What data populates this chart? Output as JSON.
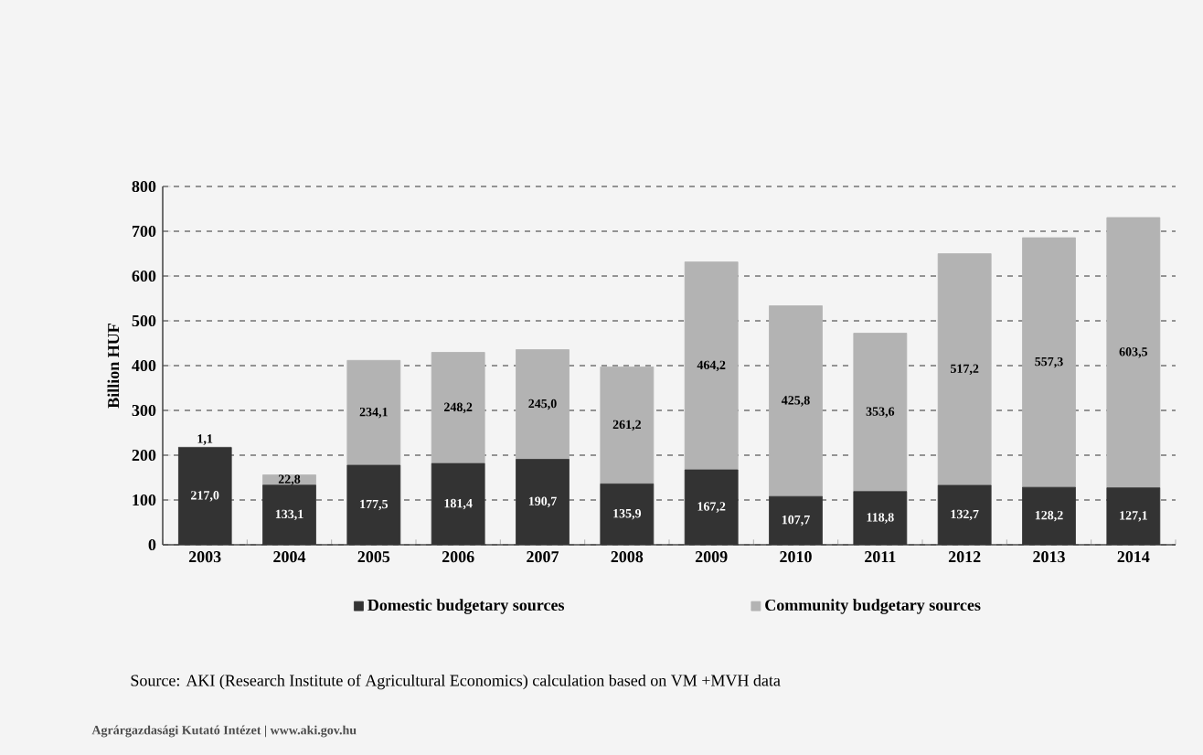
{
  "chart_data": {
    "type": "bar",
    "stacked": true,
    "ylabel": "Billion HUF",
    "categories": [
      "2003",
      "2004",
      "2005",
      "2006",
      "2007",
      "2008",
      "2009",
      "2010",
      "2011",
      "2012",
      "2013",
      "2014"
    ],
    "series": [
      {
        "name": "Domestic budgetary sources",
        "color": "#333333",
        "values": [
          217.0,
          133.1,
          177.5,
          181.4,
          190.7,
          135.9,
          167.2,
          107.7,
          118.8,
          132.7,
          128.2,
          127.1
        ],
        "value_labels": [
          "217,0",
          "133,1",
          "177,5",
          "181,4",
          "190,7",
          "135,9",
          "167,2",
          "107,7",
          "118,8",
          "132,7",
          "128,2",
          "127,1"
        ]
      },
      {
        "name": "Community budgetary sources",
        "color": "#b3b3b3",
        "values": [
          1.1,
          22.8,
          234.1,
          248.2,
          245.0,
          261.2,
          464.2,
          425.8,
          353.6,
          517.2,
          557.3,
          603.5
        ],
        "value_labels": [
          "1,1",
          "22,8",
          "234,1",
          "248,2",
          "245,0",
          "261,2",
          "464,2",
          "425,8",
          "353,6",
          "517,2",
          "557,3",
          "603,5"
        ]
      }
    ],
    "ylim": [
      0,
      800
    ],
    "yticks": [
      0,
      100,
      200,
      300,
      400,
      500,
      600,
      700,
      800
    ],
    "grid": "y",
    "legend": "bottom",
    "annotations": [
      "Source: AKI (Research Institute of Agricultural Economics) calculation based on VM +MVH data",
      "Agrárgazdasági Kutató Intézet | www.aki.gov.hu"
    ]
  }
}
